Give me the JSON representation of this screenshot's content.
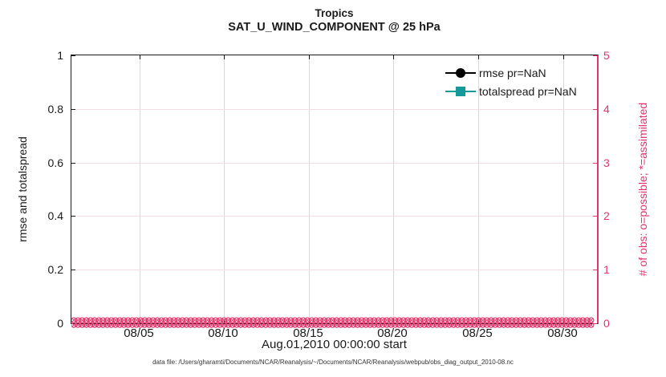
{
  "chart_data": {
    "type": "line",
    "title": "Tropics",
    "subtitle": "SAT_U_WIND_COMPONENT @ 25 hPa",
    "x_axis": {
      "label": "Aug.01,2010 00:00:00 start",
      "tick_labels": [
        "08/05",
        "08/10",
        "08/15",
        "08/20",
        "08/25",
        "08/30"
      ],
      "tick_days": [
        5,
        10,
        15,
        20,
        25,
        30
      ],
      "domain_days": [
        1,
        32
      ]
    },
    "left_axis": {
      "label": "rmse and totalspread",
      "tick_labels": [
        "0",
        "0.2",
        "0.4",
        "0.6",
        "0.8",
        "1"
      ],
      "tick_values": [
        0,
        0.2,
        0.4,
        0.6,
        0.8,
        1
      ],
      "lim": [
        0,
        1
      ]
    },
    "right_axis": {
      "label": "# of obs: o=possible; *=assimilated",
      "tick_labels": [
        "0",
        "1",
        "2",
        "3",
        "4",
        "5"
      ],
      "tick_values": [
        0,
        1,
        2,
        3,
        4,
        5
      ],
      "lim": [
        0,
        5
      ]
    },
    "grid": true,
    "legend_position": "upper-right-inside",
    "series": [
      {
        "name": "rmse pr=NaN",
        "marker": "circle",
        "color": "#000000",
        "values": "NaN (no curve drawn)"
      },
      {
        "name": "totalspread pr=NaN",
        "marker": "square",
        "color": "#159a9a",
        "values": "NaN (no curve drawn)"
      },
      {
        "name": "# of obs possible (o markers)",
        "marker": "o",
        "color": "#e2336b",
        "value_all_times": 0,
        "note": "dense row of markers at y=0 spanning Aug 01 - Sep 01"
      },
      {
        "name": "# of obs assimilated (* markers)",
        "marker": "*",
        "color": "#e2336b",
        "value_all_times": 0,
        "note": "dense row of markers at y=0 spanning Aug 01 - Sep 01"
      }
    ]
  },
  "legend": {
    "item1": "rmse pr=NaN",
    "item2": "totalspread pr=NaN"
  },
  "footer": {
    "text": "data file: /Users/gharamti/Documents/NCAR/Reanalysis/~/Documents/NCAR/Reanalysis/webpub/obs_diag_output_2010-08.nc"
  },
  "colors": {
    "axis_black": "#1a1a1a",
    "obs_pink": "#e2336b",
    "grid_pink": "#f7dbe5",
    "grid_gray": "#d8d8d8",
    "totalspread_teal": "#159a9a",
    "rmse_black": "#000000",
    "background": "#ffffff"
  }
}
